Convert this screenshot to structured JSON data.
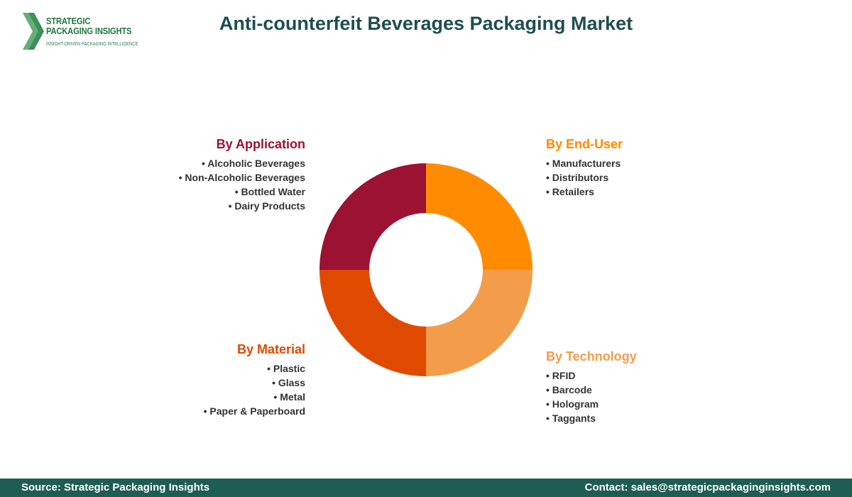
{
  "logo": {
    "line1": "STRATEGIC",
    "line2": "PACKAGING INSIGHTS",
    "tagline": "INSIGHT-DRIVEN PACKAGING INTELLIGENCE"
  },
  "title": "Anti-counterfeit Beverages Packaging Market",
  "colors": {
    "application": "#9b1232",
    "end_user": "#ff8c00",
    "technology": "#f39c4a",
    "material": "#e04a00",
    "footer": "#1d5d52",
    "title": "#1e4d4f"
  },
  "segments": {
    "application": {
      "heading": "By Application",
      "items": [
        "• Alcoholic Beverages",
        "• Non-Alcoholic Beverages",
        "• Bottled Water",
        "• Dairy Products"
      ]
    },
    "end_user": {
      "heading": "By End-User",
      "items": [
        "• Manufacturers",
        "• Distributors",
        "• Retailers"
      ]
    },
    "material": {
      "heading": "By Material",
      "items": [
        "• Plastic",
        "• Glass",
        "• Metal",
        "• Paper & Paperboard"
      ]
    },
    "technology": {
      "heading": "By Technology",
      "items": [
        "• RFID",
        "• Barcode",
        "• Hologram",
        "• Taggants"
      ]
    }
  },
  "footer": {
    "source": "Source: Strategic Packaging Insights",
    "contact": "Contact: sales@strategicpackaginginsights.com"
  }
}
